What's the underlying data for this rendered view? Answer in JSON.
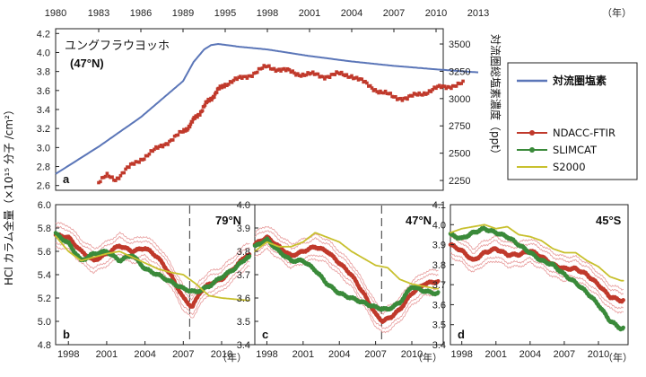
{
  "chart_data": [
    {
      "panel": "a",
      "type": "line",
      "location": "ユングフラウヨッホ",
      "location_lat": "(47°N)",
      "x_ticks": [
        "1980",
        "1983",
        "1986",
        "1989",
        "1995",
        "1998",
        "2001",
        "2004",
        "2007",
        "2010",
        "2013"
      ],
      "x_unit": "（年）",
      "ylim": [
        2.55,
        4.25
      ],
      "y_ticks": [
        "2.6",
        "2.8",
        "3.0",
        "3.2",
        "3.4",
        "3.6",
        "3.8",
        "4.0",
        "4.2"
      ],
      "ylabel": "HCl カラム全量（×10¹⁵ 分子 /cm²）",
      "ylim_right": [
        2160,
        3640
      ],
      "y_ticks_right": [
        "2250",
        "2500",
        "2750",
        "3000",
        "3250",
        "3500"
      ],
      "ylabel_right": "対流圏総塩素濃度（ppt）",
      "series": [
        {
          "name": "対流圏塩素",
          "color": "#5b76b8",
          "axis": "right",
          "x": [
            1980,
            1983,
            1986,
            1989,
            1990.5,
            1992,
            1993,
            1994,
            1995,
            1996,
            1998,
            2001,
            2004,
            2007,
            2010,
            2013
          ],
          "y": [
            2310,
            2560,
            2830,
            3160,
            3335,
            3450,
            3490,
            3500,
            3492,
            3475,
            3450,
            3390,
            3340,
            3300,
            3268,
            3240
          ]
        },
        {
          "name": "NDACC-FTIR",
          "color": "#c0392b",
          "x": [
            1983,
            1983.6,
            1984.2,
            1985,
            1986,
            1987,
            1988,
            1989,
            1990,
            1991,
            1992,
            1993,
            1994,
            1995,
            1996,
            1997,
            1998,
            1999,
            2000,
            2001,
            2002,
            2003,
            2004,
            2005,
            2006,
            2007,
            2008,
            2009,
            2010,
            2011,
            2012
          ],
          "y": [
            2.63,
            2.7,
            2.67,
            2.77,
            2.88,
            2.97,
            3.07,
            3.16,
            3.24,
            3.33,
            3.43,
            3.52,
            3.6,
            3.67,
            3.72,
            3.78,
            3.85,
            3.82,
            3.78,
            3.77,
            3.75,
            3.77,
            3.76,
            3.67,
            3.59,
            3.53,
            3.52,
            3.57,
            3.62,
            3.65,
            3.67
          ]
        }
      ]
    },
    {
      "panel": "b",
      "type": "line",
      "location": "79°N",
      "x_ticks": [
        "1998",
        "2001",
        "2004",
        "2007",
        "2010"
      ],
      "ylim": [
        4.8,
        6.0
      ],
      "y_ticks": [
        "4.8",
        "5.0",
        "5.2",
        "5.4",
        "5.6",
        "5.8",
        "6.0"
      ],
      "event_year": 2007.5,
      "series": [
        {
          "name": "NDACC-FTIR",
          "color": "#c0392b",
          "x": [
            1997,
            1998,
            1999,
            2000,
            2001,
            2002,
            2003,
            2004,
            2005,
            2006,
            2007,
            2007.7,
            2008.3,
            2009,
            2010,
            2011,
            2012
          ],
          "y": [
            5.74,
            5.72,
            5.6,
            5.52,
            5.58,
            5.65,
            5.6,
            5.63,
            5.55,
            5.4,
            5.2,
            5.12,
            5.25,
            5.32,
            5.36,
            5.46,
            5.57
          ]
        },
        {
          "name": "SLIMCAT",
          "color": "#3a8a3a",
          "x": [
            1997,
            1998,
            1999,
            2000,
            2001,
            2002,
            2003,
            2004,
            2005,
            2006,
            2007,
            2008,
            2009,
            2010,
            2011,
            2012
          ],
          "y": [
            5.75,
            5.67,
            5.52,
            5.58,
            5.6,
            5.52,
            5.57,
            5.45,
            5.4,
            5.34,
            5.28,
            5.25,
            5.3,
            5.38,
            5.45,
            5.55
          ]
        },
        {
          "name": "S2000",
          "color": "#c8c02e",
          "x": [
            1997,
            1998,
            1999,
            2000,
            2001,
            2002,
            2003,
            2004,
            2005,
            2006,
            2007,
            2008,
            2009,
            2010,
            2011,
            2012
          ],
          "y": [
            5.73,
            5.6,
            5.52,
            5.55,
            5.58,
            5.6,
            5.55,
            5.5,
            5.45,
            5.42,
            5.4,
            5.32,
            5.22,
            5.2,
            5.19,
            5.18
          ]
        }
      ]
    },
    {
      "panel": "c",
      "type": "line",
      "location": "47°N",
      "x_ticks": [
        "1998",
        "2001",
        "2004",
        "2007",
        "2010"
      ],
      "ylim": [
        3.4,
        4.0
      ],
      "y_ticks": [
        "3.4",
        "3.5",
        "3.6",
        "3.7",
        "3.8",
        "3.9",
        "4.0"
      ],
      "event_year": 2007.5,
      "series": [
        {
          "name": "NDACC-FTIR",
          "color": "#c0392b",
          "x": [
            1997,
            1998,
            1999,
            2000,
            2001,
            2002,
            2003,
            2004,
            2005,
            2006,
            2007,
            2007.6,
            2008.3,
            2009,
            2010,
            2011,
            2012
          ],
          "y": [
            3.83,
            3.86,
            3.82,
            3.78,
            3.8,
            3.82,
            3.8,
            3.75,
            3.7,
            3.62,
            3.53,
            3.5,
            3.52,
            3.55,
            3.62,
            3.66,
            3.67
          ]
        },
        {
          "name": "SLIMCAT",
          "color": "#3a8a3a",
          "x": [
            1997,
            1998,
            1999,
            2000,
            2001,
            2002,
            2003,
            2004,
            2005,
            2006,
            2007,
            2008,
            2009,
            2010,
            2011,
            2012
          ],
          "y": [
            3.82,
            3.85,
            3.8,
            3.76,
            3.76,
            3.72,
            3.66,
            3.62,
            3.6,
            3.58,
            3.56,
            3.55,
            3.58,
            3.65,
            3.63,
            3.62
          ]
        },
        {
          "name": "S2000",
          "color": "#c8c02e",
          "x": [
            1997,
            1998,
            1999,
            2000,
            2001,
            2002,
            2003,
            2004,
            2005,
            2006,
            2007,
            2008,
            2009,
            2010,
            2011,
            2012
          ],
          "y": [
            3.8,
            3.84,
            3.82,
            3.82,
            3.84,
            3.88,
            3.86,
            3.84,
            3.8,
            3.77,
            3.74,
            3.73,
            3.68,
            3.66,
            3.65,
            3.64
          ]
        }
      ]
    },
    {
      "panel": "d",
      "type": "line",
      "location": "45°S",
      "x_ticks": [
        "1998",
        "2001",
        "2004",
        "2007",
        "2010"
      ],
      "ylim": [
        3.4,
        4.1
      ],
      "y_ticks": [
        "3.4",
        "3.5",
        "3.6",
        "3.7",
        "3.8",
        "3.9",
        "4.0",
        "4.1"
      ],
      "series": [
        {
          "name": "NDACC-FTIR",
          "color": "#c0392b",
          "x": [
            1997,
            1998,
            1999,
            2000,
            2001,
            2002,
            2003,
            2004,
            2005,
            2006,
            2007,
            2008,
            2009,
            2010,
            2011,
            2012
          ],
          "y": [
            3.9,
            3.87,
            3.82,
            3.86,
            3.88,
            3.85,
            3.85,
            3.87,
            3.84,
            3.8,
            3.78,
            3.78,
            3.75,
            3.7,
            3.64,
            3.62
          ]
        },
        {
          "name": "SLIMCAT",
          "color": "#3a8a3a",
          "x": [
            1997,
            1998,
            1999,
            2000,
            2001,
            2002,
            2003,
            2004,
            2005,
            2006,
            2007,
            2008,
            2009,
            2010,
            2011,
            2012
          ],
          "y": [
            3.95,
            3.93,
            3.96,
            3.98,
            3.96,
            3.94,
            3.9,
            3.86,
            3.82,
            3.8,
            3.75,
            3.71,
            3.66,
            3.6,
            3.52,
            3.48
          ]
        },
        {
          "name": "S2000",
          "color": "#c8c02e",
          "x": [
            1997,
            1998,
            1999,
            2000,
            2001,
            2002,
            2003,
            2004,
            2005,
            2006,
            2007,
            2008,
            2009,
            2010,
            2011,
            2012
          ],
          "y": [
            3.96,
            3.98,
            3.99,
            4.0,
            3.98,
            3.99,
            3.95,
            3.94,
            3.92,
            3.88,
            3.86,
            3.86,
            3.82,
            3.79,
            3.74,
            3.72
          ]
        }
      ]
    }
  ],
  "axes": {
    "bottom_year_unit": "（年）"
  },
  "legend": {
    "entries": [
      {
        "label": "対流圏塩素",
        "color": "#5b76b8",
        "bold": true
      },
      {
        "label": "NDACC-FTIR",
        "color": "#c0392b",
        "marker": true
      },
      {
        "label": "SLIMCAT",
        "color": "#3a8a3a",
        "marker": true
      },
      {
        "label": "S2000",
        "color": "#c8c02e",
        "marker": false
      }
    ]
  }
}
